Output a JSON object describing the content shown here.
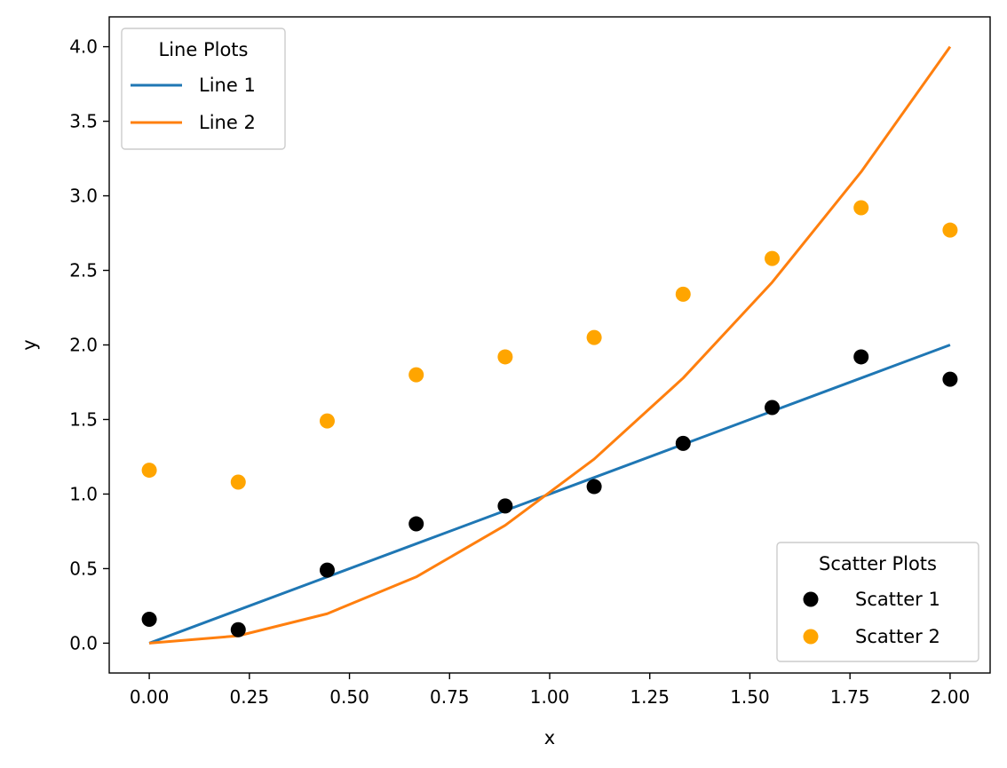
{
  "chart_data": {
    "type": "line",
    "xlabel": "x",
    "ylabel": "y",
    "xlim": [
      -0.1,
      2.1
    ],
    "ylim": [
      -0.2,
      4.2
    ],
    "xticks": [
      "0.00",
      "0.25",
      "0.50",
      "0.75",
      "1.00",
      "1.25",
      "1.50",
      "1.75",
      "2.00"
    ],
    "yticks": [
      "0.0",
      "0.5",
      "1.0",
      "1.5",
      "2.0",
      "2.5",
      "3.0",
      "3.5",
      "4.0"
    ],
    "grid": false,
    "x": [
      0.0,
      0.2222,
      0.4444,
      0.6667,
      0.8889,
      1.1111,
      1.3333,
      1.5556,
      1.7778,
      2.0
    ],
    "line_series": [
      {
        "name": "Line 1",
        "color": "#1f77b4",
        "values": [
          0.0,
          0.2222,
          0.4444,
          0.6667,
          0.8889,
          1.1111,
          1.3333,
          1.5556,
          1.7778,
          2.0
        ]
      },
      {
        "name": "Line 2",
        "color": "#ff7f0e",
        "values": [
          0.0,
          0.0494,
          0.1975,
          0.4444,
          0.7901,
          1.2346,
          1.7778,
          2.4198,
          3.1605,
          4.0
        ]
      }
    ],
    "scatter_series": [
      {
        "name": "Scatter 1",
        "color": "#000000",
        "values": [
          0.16,
          0.09,
          0.49,
          0.8,
          0.92,
          1.05,
          1.34,
          1.58,
          1.92,
          1.77
        ]
      },
      {
        "name": "Scatter 2",
        "color": "#ffa500",
        "values": [
          1.16,
          1.08,
          1.49,
          1.8,
          1.92,
          2.05,
          2.34,
          2.58,
          2.92,
          2.77
        ]
      }
    ],
    "legends": [
      {
        "title": "Line Plots",
        "placement": "upper-left",
        "kind": "line",
        "entries": [
          "Line 1",
          "Line 2"
        ]
      },
      {
        "title": "Scatter Plots",
        "placement": "lower-right",
        "kind": "scatter",
        "entries": [
          "Scatter 1",
          "Scatter 2"
        ]
      }
    ]
  }
}
